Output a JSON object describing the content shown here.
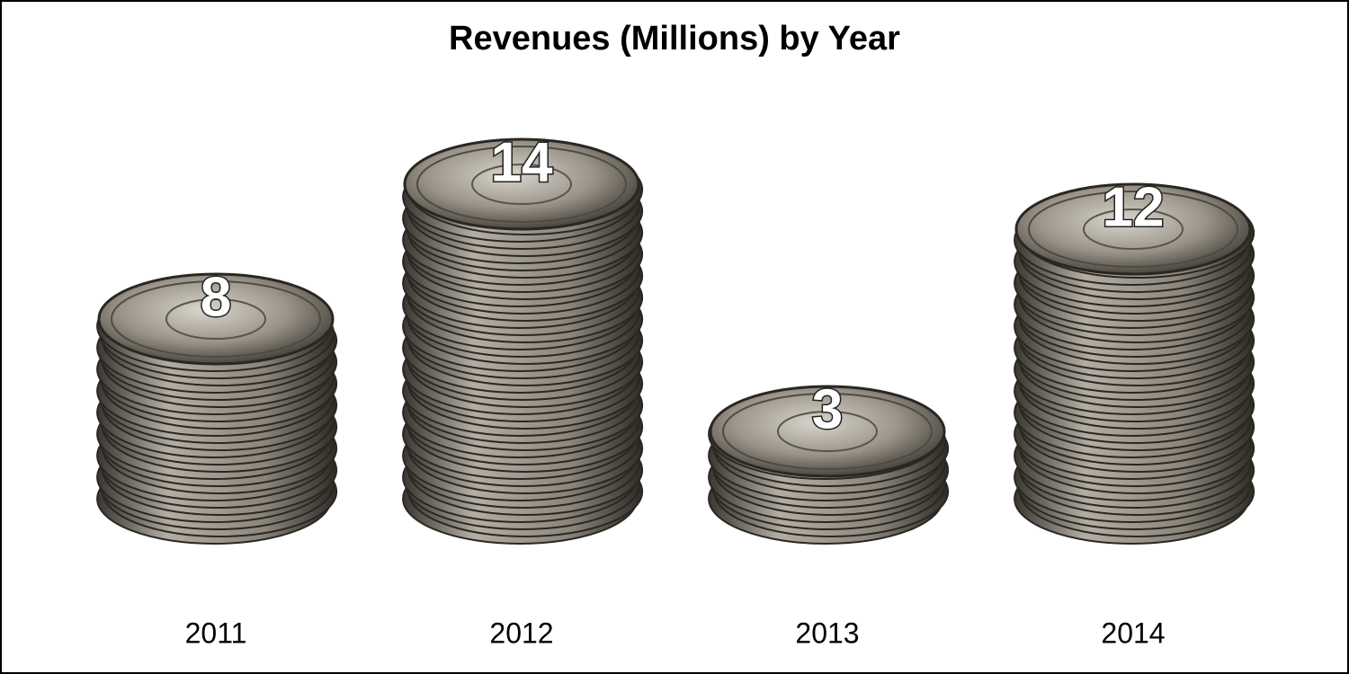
{
  "chart_data": {
    "type": "bar",
    "title": "Revenues (Millions) by Year",
    "categories": [
      "2011",
      "2012",
      "2013",
      "2014"
    ],
    "values": [
      8,
      14,
      3,
      12
    ],
    "color": "#8a8478"
  }
}
